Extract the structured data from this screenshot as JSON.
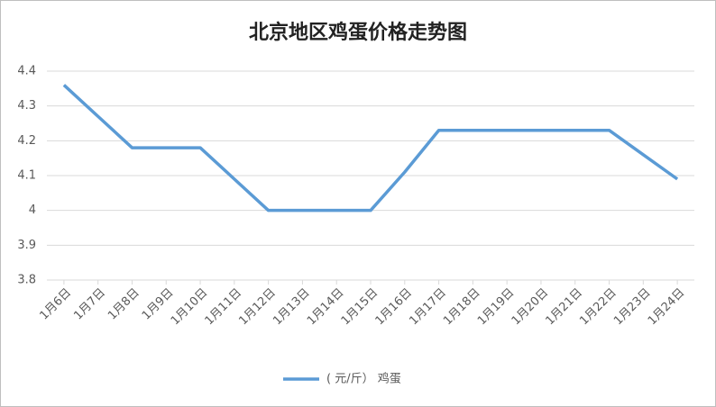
{
  "chart_data": {
    "type": "line",
    "title": "北京地区鸡蛋价格走势图",
    "categories": [
      "1月6日",
      "1月7日",
      "1月8日",
      "1月9日",
      "1月10日",
      "1月11日",
      "1月12日",
      "1月13日",
      "1月14日",
      "1月15日",
      "1月16日",
      "1月17日",
      "1月18日",
      "1月19日",
      "1月20日",
      "1月21日",
      "1月22日",
      "1月23日",
      "1月24日"
    ],
    "series": [
      {
        "name": "( 元/斤） 鸡蛋",
        "color": "#5b9bd5",
        "values": [
          4.36,
          4.27,
          4.18,
          4.18,
          4.18,
          4.09,
          4.0,
          4.0,
          4.0,
          4.0,
          4.11,
          4.23,
          4.23,
          4.23,
          4.23,
          4.23,
          4.23,
          4.16,
          4.09
        ]
      }
    ],
    "ylim": [
      3.8,
      4.4
    ],
    "yticks": [
      3.8,
      3.9,
      4,
      4.1,
      4.2,
      4.3,
      4.4
    ],
    "grid": true,
    "legend": "bottom"
  }
}
